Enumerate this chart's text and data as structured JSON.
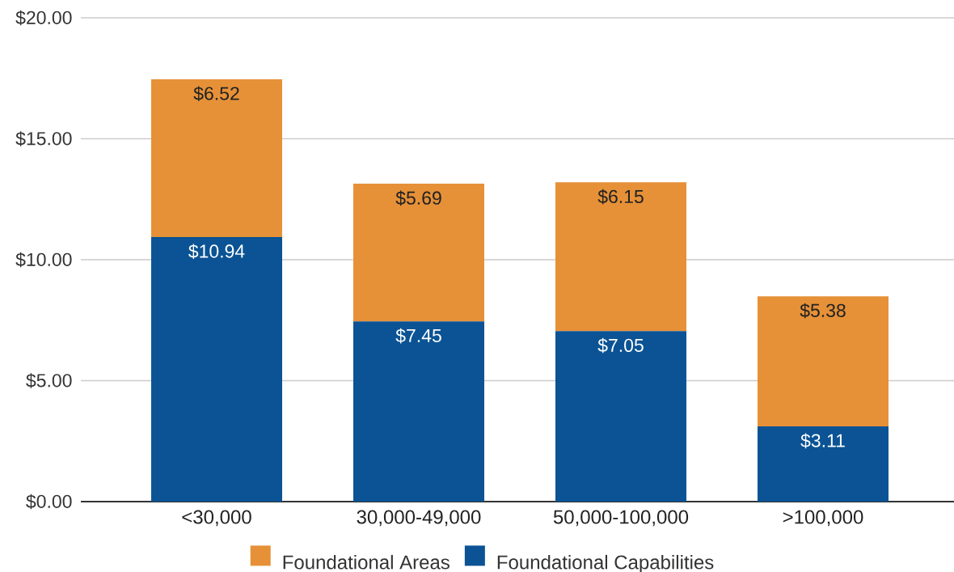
{
  "chart_data": {
    "type": "bar",
    "stacked": true,
    "categories": [
      "<30,000",
      "30,000-49,000",
      "50,000-100,000",
      ">100,000"
    ],
    "series": [
      {
        "name": "Foundational Capabilities",
        "color": "#0b5394",
        "values": [
          10.94,
          7.45,
          7.05,
          3.11
        ],
        "value_labels": [
          "$10.94",
          "$7.45",
          "$7.05",
          "$3.11"
        ]
      },
      {
        "name": "Foundational Areas",
        "color": "#e69138",
        "values": [
          6.52,
          5.69,
          6.15,
          5.38
        ],
        "value_labels": [
          "$6.52",
          "$5.69",
          "$6.15",
          "$5.38"
        ]
      }
    ],
    "ylim": [
      0,
      20
    ],
    "yticks": [
      {
        "value": 0,
        "label": "$0.00"
      },
      {
        "value": 5,
        "label": "$5.00"
      },
      {
        "value": 10,
        "label": "$10.00"
      },
      {
        "value": 15,
        "label": "$15.00"
      },
      {
        "value": 20,
        "label": "$20.00"
      }
    ],
    "grid": "y",
    "legend": "bottom"
  }
}
